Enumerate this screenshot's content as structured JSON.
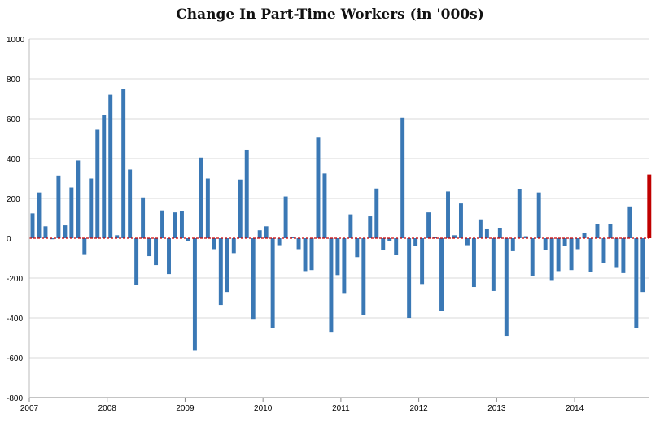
{
  "chart_data": {
    "type": "bar",
    "title": "Change In Part-Time Workers (in '000s)",
    "xlabel": "",
    "ylabel": "",
    "ylim": [
      -800,
      1000
    ],
    "yticks": [
      1000,
      800,
      600,
      400,
      200,
      0,
      -200,
      -400,
      -600,
      -800
    ],
    "ytick_labels": [
      "1000",
      "800",
      "600",
      "400",
      "200",
      "0",
      "-200",
      "-400",
      "-600",
      "-800"
    ],
    "year_labels": [
      "2007",
      "2008",
      "2009",
      "2010",
      "2011",
      "2012",
      "2013",
      "2014"
    ],
    "x_start": 2007,
    "x_end": 2014.95,
    "grid": true,
    "bar_color": "#3a78b5",
    "highlight_color": "#c00000",
    "zero_line_color": "#cc0000",
    "categories": [
      "2007-01",
      "2007-02",
      "2007-03",
      "2007-04",
      "2007-05",
      "2007-06",
      "2007-07",
      "2007-08",
      "2007-09",
      "2007-10",
      "2007-11",
      "2007-12",
      "2008-01",
      "2008-02",
      "2008-03",
      "2008-04",
      "2008-05",
      "2008-06",
      "2008-07",
      "2008-08",
      "2008-09",
      "2008-10",
      "2008-11",
      "2008-12",
      "2009-01",
      "2009-02",
      "2009-03",
      "2009-04",
      "2009-05",
      "2009-06",
      "2009-07",
      "2009-08",
      "2009-09",
      "2009-10",
      "2009-11",
      "2009-12",
      "2010-01",
      "2010-02",
      "2010-03",
      "2010-04",
      "2010-05",
      "2010-06",
      "2010-07",
      "2010-08",
      "2010-09",
      "2010-10",
      "2010-11",
      "2010-12",
      "2011-01",
      "2011-02",
      "2011-03",
      "2011-04",
      "2011-05",
      "2011-06",
      "2011-07",
      "2011-08",
      "2011-09",
      "2011-10",
      "2011-11",
      "2011-12",
      "2012-01",
      "2012-02",
      "2012-03",
      "2012-04",
      "2012-05",
      "2012-06",
      "2012-07",
      "2012-08",
      "2012-09",
      "2012-10",
      "2012-11",
      "2012-12",
      "2013-01",
      "2013-02",
      "2013-03",
      "2013-04",
      "2013-05",
      "2013-06",
      "2013-07",
      "2013-08",
      "2013-09",
      "2013-10",
      "2013-11",
      "2013-12",
      "2014-01",
      "2014-02",
      "2014-03",
      "2014-04",
      "2014-05",
      "2014-06",
      "2014-07",
      "2014-08",
      "2014-09",
      "2014-10",
      "2014-11",
      "2014-12"
    ],
    "values": [
      125,
      230,
      60,
      -5,
      315,
      65,
      255,
      390,
      -80,
      300,
      545,
      620,
      720,
      15,
      750,
      345,
      -235,
      205,
      -90,
      -135,
      140,
      -180,
      130,
      135,
      -15,
      -565,
      405,
      300,
      -55,
      -335,
      -270,
      -75,
      295,
      445,
      -405,
      40,
      60,
      -450,
      -35,
      210,
      5,
      -55,
      -165,
      -160,
      505,
      325,
      -470,
      -185,
      -275,
      120,
      -95,
      -385,
      110,
      250,
      -60,
      -15,
      -85,
      605,
      -400,
      -40,
      -230,
      130,
      5,
      -365,
      235,
      15,
      175,
      -35,
      -245,
      95,
      45,
      -265,
      50,
      -490,
      -65,
      245,
      10,
      -190,
      230,
      -60,
      -210,
      -165,
      -40,
      -160,
      -55,
      25,
      -170,
      70,
      -125,
      70,
      -145,
      -175,
      160,
      -450,
      -270,
      320
    ],
    "highlight_index": 95
  }
}
